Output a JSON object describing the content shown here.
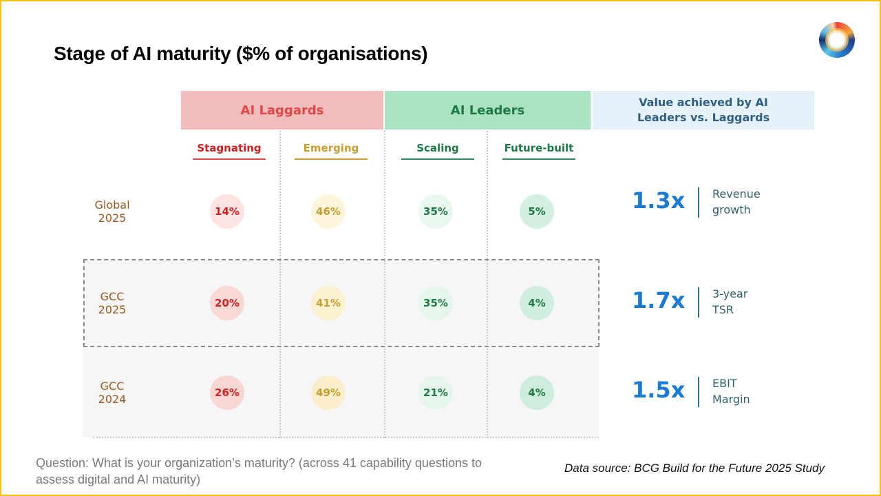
{
  "title": "Stage of AI maturity ($% of organisations)",
  "groups": {
    "laggards": "AI Laggards",
    "leaders": "AI Leaders",
    "value": "Value achieved by AI Leaders vs. Laggards"
  },
  "stages": [
    "Stagnating",
    "Emerging",
    "Scaling",
    "Future-built"
  ],
  "rows": [
    {
      "label": "Global 2025",
      "values": [
        "14%",
        "46%",
        "35%",
        "5%"
      ]
    },
    {
      "label": "GCC 2025",
      "values": [
        "20%",
        "41%",
        "35%",
        "4%"
      ]
    },
    {
      "label": "GCC 2024",
      "values": [
        "26%",
        "49%",
        "21%",
        "4%"
      ]
    }
  ],
  "value_metrics": [
    {
      "multiplier": "1.3x",
      "label": "Revenue growth"
    },
    {
      "multiplier": "1.7x",
      "label": "3-year TSR"
    },
    {
      "multiplier": "1.5x",
      "label": "EBIT Margin"
    }
  ],
  "question": "Question: What is your organization’s maturity? (across 41 capability questions to assess digital and AI maturity)",
  "source": "Data source: BCG Build for the Future 2025 Study",
  "colors": {
    "laggard": "#d42020",
    "emerging": "#c9a030",
    "leader": "#1e7a45",
    "accent": "#1a7ad4",
    "border": "#f1c21b"
  }
}
